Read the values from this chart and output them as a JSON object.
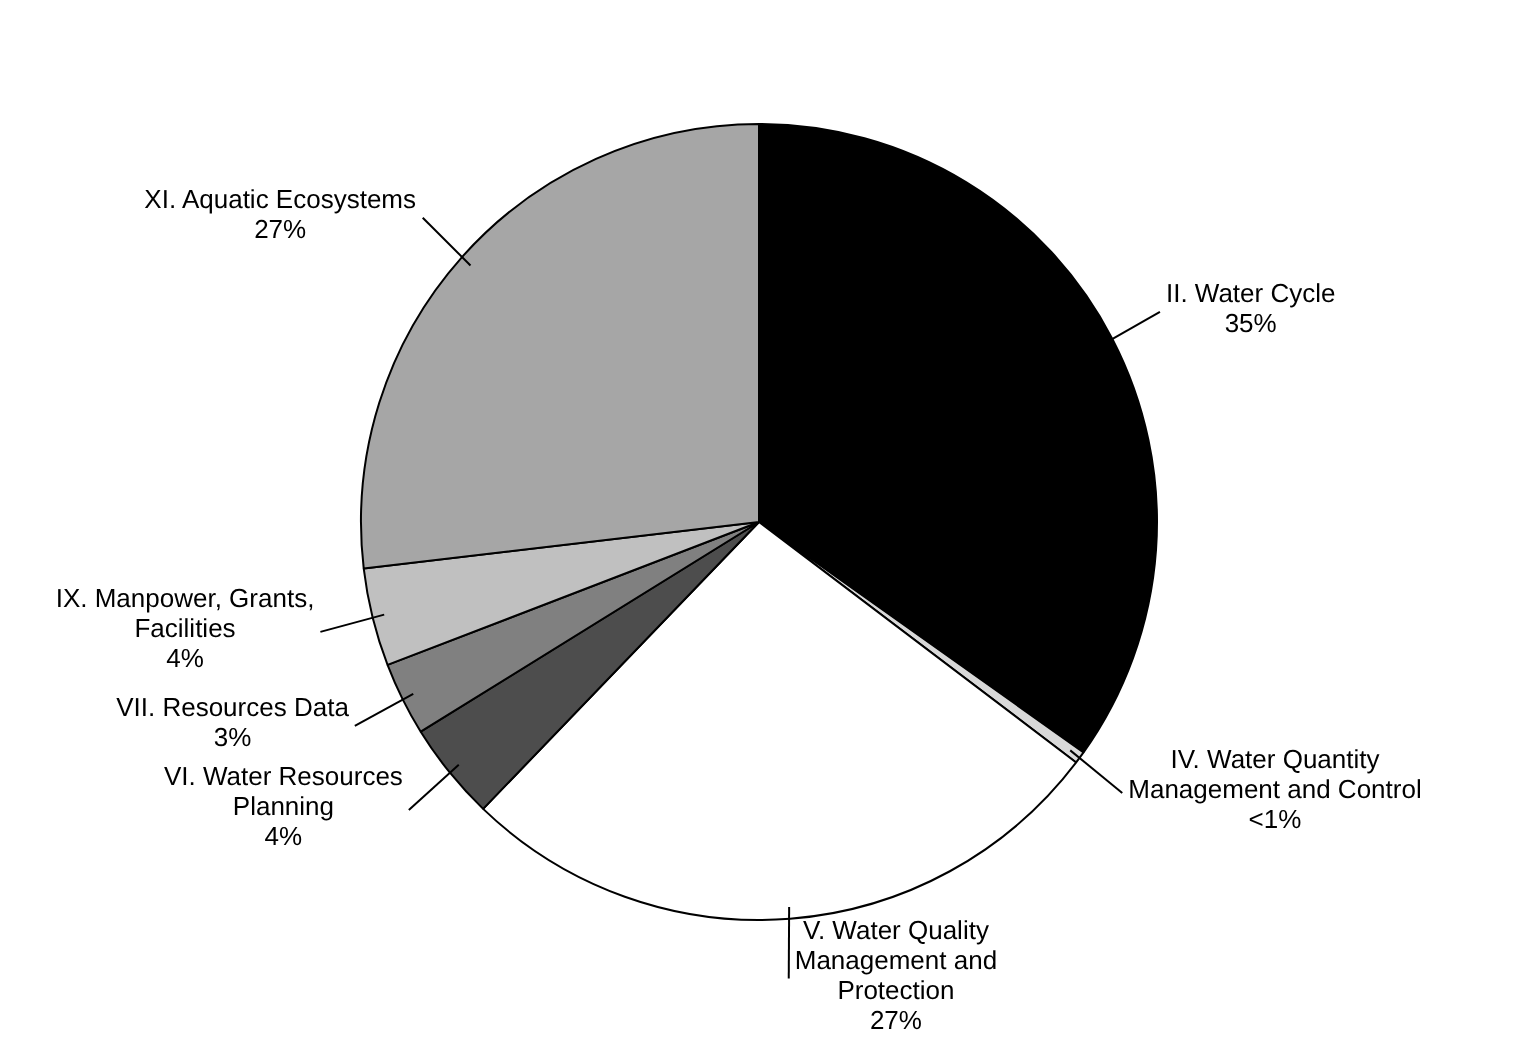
{
  "chart_data": {
    "type": "pie",
    "categories": [
      "II. Water Cycle",
      "IV. Water Quantity Management and Control",
      "V. Water Quality Management and Protection",
      "VI. Water Resources Planning",
      "VII. Resources Data",
      "IX. Manpower, Grants, Facilities",
      "XI. Aquatic Ecosystems"
    ],
    "values": [
      35,
      0.5,
      27,
      4,
      3,
      4,
      27
    ],
    "value_labels": [
      "35%",
      "<1%",
      "27%",
      "4%",
      "3%",
      "4%",
      "27%"
    ],
    "colors": [
      "#000000",
      "#d9d9d9",
      "#ffffff",
      "#4d4d4d",
      "#808080",
      "#c0c0c0",
      "#a6a6a6"
    ],
    "legend": false
  }
}
